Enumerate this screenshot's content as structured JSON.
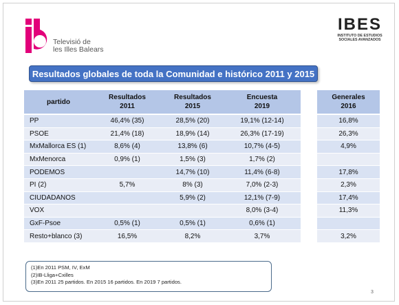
{
  "header": {
    "tv_name_line1": "Televisió de",
    "tv_name_line2": "les Illes Balears",
    "ibes_name": "IBES",
    "ibes_sub_line1": "INSTITUTO DE ESTUDIOS",
    "ibes_sub_line2": "SOCIALES AVANZADOS"
  },
  "title": "Resultados globales de toda la Comunidad e histórico 2011 y 2015",
  "table": {
    "headers": [
      "partido",
      "Resultados 2011",
      "Resultados 2015",
      "Encuesta 2019"
    ],
    "rows": [
      [
        "PP",
        "46,4% (35)",
        "28,5% (20)",
        "19,1% (12-14)"
      ],
      [
        "PSOE",
        "21,4% (18)",
        "18,9% (14)",
        "26,3% (17-19)"
      ],
      [
        "MxMallorca ES (1)",
        "8,6% (4)",
        "13,8% (6)",
        "10,7% (4-5)"
      ],
      [
        "MxMenorca",
        "0,9% (1)",
        "1,5% (3)",
        "1,7% (2)"
      ],
      [
        "PODEMOS",
        "",
        "14,7% (10)",
        "11,4% (6-8)"
      ],
      [
        "PI (2)",
        "5,7%",
        "8% (3)",
        "7,0% (2-3)"
      ],
      [
        "CIUDADANOS",
        "",
        "5,9% (2)",
        "12,1% (7-9)"
      ],
      [
        "VOX",
        "",
        "",
        "8,0% (3-4)"
      ],
      [
        "GxF-Psoe",
        "0,5% (1)",
        "0,5% (1)",
        "0,6% (1)"
      ],
      [
        "Resto+blanco (3)",
        "16,5%",
        "8,2%",
        "3,7%"
      ]
    ]
  },
  "generales": {
    "header": "Generales 2016",
    "values": [
      "16,8%",
      "26,3%",
      "4,9%",
      "",
      "17,8%",
      "2,3%",
      "17,4%",
      "11,3%",
      "",
      "3,2%"
    ]
  },
  "notes": [
    "(1)En 2011 PSM, IV, ExM",
    "(2)IB-Lliga+Cxilles",
    "(3)En 2011  25 partidos. En 2015 16 partidos. En 2019 7 partidos."
  ],
  "page_number": "3",
  "colors": {
    "ib_magenta": "#e2007a",
    "title_blue": "#4472c4",
    "header_blue": "#b4c6e7",
    "row_even": "#d9e2f3",
    "row_odd": "#e9edf6"
  }
}
